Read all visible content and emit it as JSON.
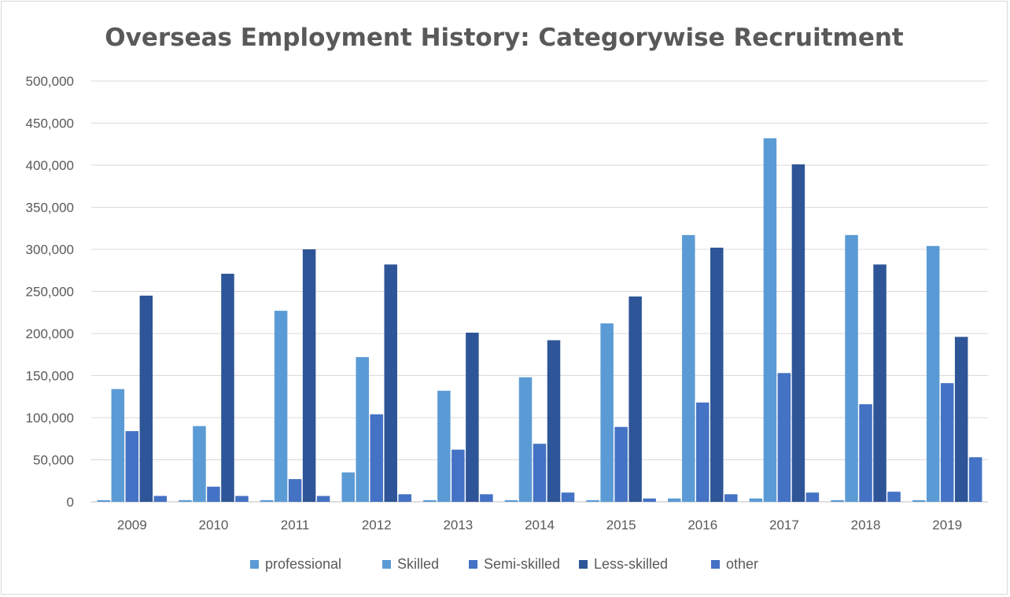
{
  "chart_data": {
    "type": "bar",
    "title": "Overseas Employment History: Categorywise Recruitment",
    "categories": [
      "2009",
      "2010",
      "2011",
      "2012",
      "2013",
      "2014",
      "2015",
      "2016",
      "2017",
      "2018",
      "2019"
    ],
    "ylim": [
      0,
      500000
    ],
    "yticks": [
      0,
      50000,
      100000,
      150000,
      200000,
      250000,
      300000,
      350000,
      400000,
      450000,
      500000
    ],
    "ytick_labels": [
      "0",
      "50,000",
      "100,000",
      "150,000",
      "200,000",
      "250,000",
      "300,000",
      "350,000",
      "400,000",
      "450,000",
      "500,000"
    ],
    "grid": true,
    "legend_position": "bottom",
    "series": [
      {
        "name": "professional",
        "color": "#5b9bd5",
        "values": [
          2000,
          2000,
          2000,
          35000,
          2000,
          2000,
          2000,
          4000,
          4000,
          2000,
          2000
        ]
      },
      {
        "name": "Skilled",
        "color": "#5b9bd5",
        "values": [
          134000,
          90000,
          227000,
          172000,
          132000,
          148000,
          212000,
          317000,
          432000,
          317000,
          304000
        ]
      },
      {
        "name": "Semi-skilled",
        "color": "#4472c4",
        "values": [
          84000,
          18000,
          27000,
          104000,
          62000,
          69000,
          89000,
          118000,
          153000,
          116000,
          141000
        ]
      },
      {
        "name": "Less-skilled",
        "color": "#2e5597",
        "values": [
          245000,
          271000,
          300000,
          282000,
          201000,
          192000,
          244000,
          302000,
          401000,
          282000,
          196000
        ]
      },
      {
        "name": "other",
        "color": "#4472c4",
        "values": [
          7000,
          7000,
          7000,
          9000,
          9000,
          11000,
          4000,
          9000,
          11000,
          12000,
          53000
        ]
      }
    ]
  }
}
